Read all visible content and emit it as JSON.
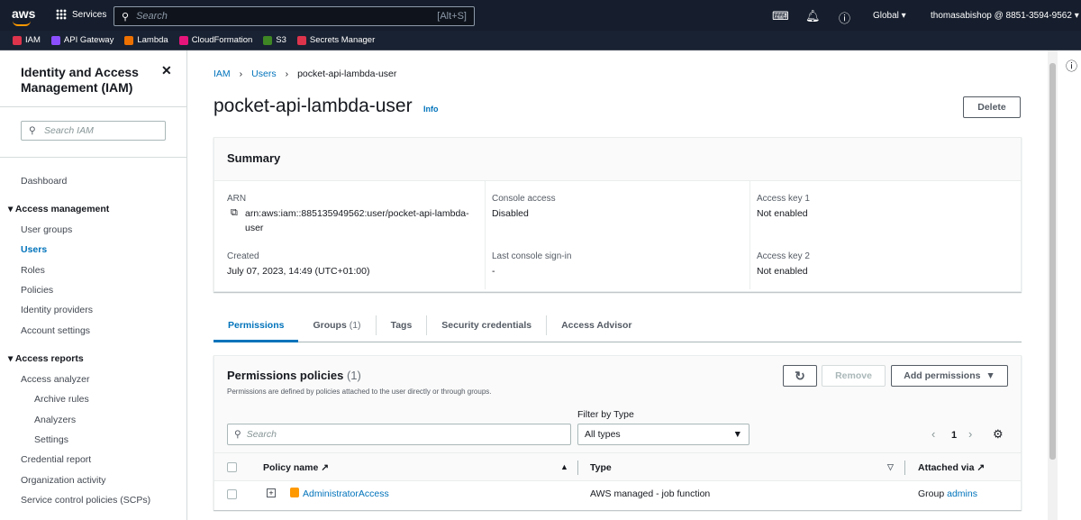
{
  "topnav": {
    "logo": "aws",
    "services": "Services",
    "search_placeholder": "Search",
    "search_shortcut": "[Alt+S]",
    "region": "Global ▾",
    "account": "thomasabishop @ 8851-3594-9562 ▾"
  },
  "favorites": [
    {
      "label": "IAM",
      "color": "#dd344c"
    },
    {
      "label": "API Gateway",
      "color": "#8c4fff"
    },
    {
      "label": "Lambda",
      "color": "#ed7100"
    },
    {
      "label": "CloudFormation",
      "color": "#e7157b"
    },
    {
      "label": "S3",
      "color": "#3f8624"
    },
    {
      "label": "Secrets Manager",
      "color": "#dd344c"
    }
  ],
  "sidebar": {
    "title": "Identity and Access Management (IAM)",
    "search_placeholder": "Search IAM",
    "dashboard": "Dashboard",
    "access_management": "Access management",
    "items": [
      "User groups",
      "Users",
      "Roles",
      "Policies",
      "Identity providers",
      "Account settings"
    ],
    "access_reports": "Access reports",
    "reports": [
      "Access analyzer",
      "Archive rules",
      "Analyzers",
      "Settings",
      "Credential report",
      "Organization activity",
      "Service control policies (SCPs)"
    ]
  },
  "breadcrumb": [
    "IAM",
    "Users",
    "pocket-api-lambda-user"
  ],
  "page": {
    "title": "pocket-api-lambda-user",
    "info": "Info",
    "delete": "Delete"
  },
  "summary": {
    "title": "Summary",
    "arn_label": "ARN",
    "arn": "arn:aws:iam::885135949562:user/pocket-api-lambda-user",
    "created_label": "Created",
    "created": "July 07, 2023, 14:49 (UTC+01:00)",
    "console_label": "Console access",
    "console": "Disabled",
    "signin_label": "Last console sign-in",
    "signin": "-",
    "key1_label": "Access key 1",
    "key1": "Not enabled",
    "key2_label": "Access key 2",
    "key2": "Not enabled"
  },
  "tabs": [
    {
      "label": "Permissions"
    },
    {
      "label": "Groups",
      "count": "(1)"
    },
    {
      "label": "Tags"
    },
    {
      "label": "Security credentials"
    },
    {
      "label": "Access Advisor"
    }
  ],
  "permissions": {
    "title": "Permissions policies",
    "count": "(1)",
    "desc": "Permissions are defined by policies attached to the user directly or through groups.",
    "remove": "Remove",
    "add": "Add permissions",
    "filter_label": "Filter by Type",
    "filter_value": "All types",
    "search_placeholder": "Search",
    "page": "1",
    "columns": [
      "Policy name",
      "Type",
      "Attached via"
    ],
    "rows": [
      {
        "name": "AdministratorAccess",
        "type": "AWS managed - job function",
        "via_prefix": "Group",
        "via": "admins"
      }
    ]
  }
}
